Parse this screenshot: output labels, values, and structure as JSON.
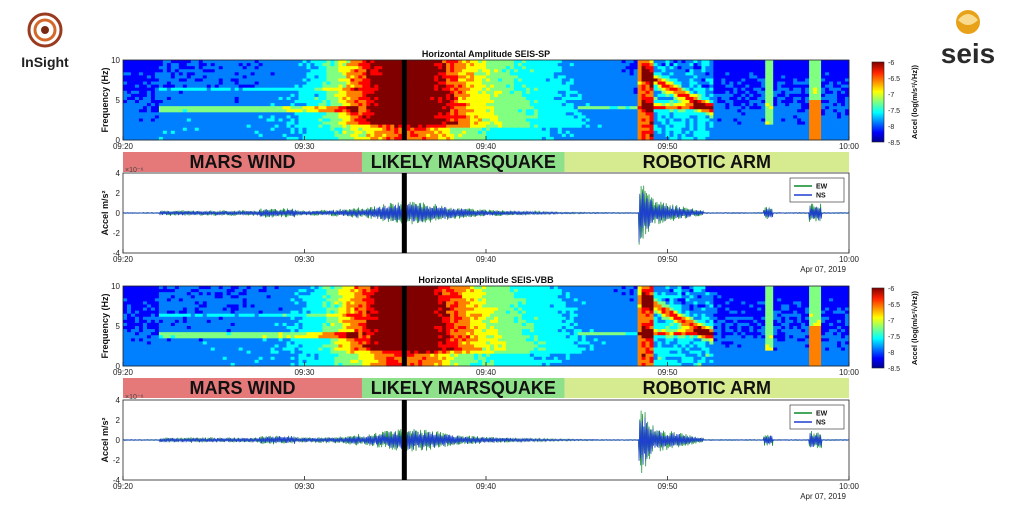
{
  "logos": {
    "left": {
      "name": "InSight",
      "color": "#9a3a1e"
    },
    "right": {
      "name": "seis",
      "accent": "#e8a21a"
    }
  },
  "time_axis": {
    "ticks": [
      "09:20",
      "09:30",
      "09:40",
      "09:50",
      "10:00"
    ],
    "date": "Apr 07, 2019"
  },
  "event_marker_time": "09:35:30",
  "bands": [
    {
      "label": "MARS WIND",
      "start": "09:20",
      "end": "09:33:10",
      "color": "#e5797a"
    },
    {
      "label": "LIKELY MARSQUAKE",
      "start": "09:33:10",
      "end": "09:44:20",
      "color": "#8fe08a"
    },
    {
      "label": "ROBOTIC ARM",
      "start": "09:44:20",
      "end": "10:00",
      "color": "#d6ea8f"
    }
  ],
  "colors": {
    "ew": "#0a8a2a",
    "ns": "#1f3fd0",
    "marker": "#000000",
    "colormap": [
      "#00008f",
      "#0000ff",
      "#0080ff",
      "#00ffff",
      "#80ff80",
      "#ffff00",
      "#ff8000",
      "#ff0000",
      "#800000"
    ]
  },
  "chart_data": [
    {
      "type": "heatmap",
      "title": "Horizontal Amplitude SEIS-SP",
      "ylabel": "Frequency (Hz)",
      "ylim": [
        0,
        10
      ],
      "yticks": [
        "0",
        "5",
        "10"
      ],
      "colorbar": {
        "label": "Accel (log(m/s²/√Hz))",
        "ticks": [
          "-6",
          "-6.5",
          "-7",
          "-7.5",
          "-8",
          "-8.5"
        ],
        "range": [
          -8.5,
          -6
        ]
      }
    },
    {
      "type": "line",
      "ylabel": "Accel m/s²",
      "scale_label": "×10⁻⁶",
      "ylim": [
        -4,
        4
      ],
      "yticks": [
        "4",
        "2",
        "0",
        "-2",
        "-4"
      ],
      "legend": [
        "EW",
        "NS"
      ],
      "legend_position": "top-right"
    },
    {
      "type": "heatmap",
      "title": "Horizontal Amplitude SEIS-VBB",
      "ylabel": "Frequency (Hz)",
      "ylim": [
        0,
        10
      ],
      "yticks": [
        "0",
        "5",
        "10"
      ],
      "colorbar": {
        "label": "Accel (log(m/s²/√Hz))",
        "ticks": [
          "-6",
          "-6.5",
          "-7",
          "-7.5",
          "-8",
          "-8.5"
        ],
        "range": [
          -8.5,
          -6
        ]
      }
    },
    {
      "type": "line",
      "ylabel": "Accel m/s²",
      "scale_label": "×10⁻⁶",
      "ylim": [
        -4,
        4
      ],
      "yticks": [
        "4",
        "2",
        "0",
        "-2",
        "-4"
      ],
      "legend": [
        "EW",
        "NS"
      ],
      "legend_position": "top-right"
    }
  ]
}
